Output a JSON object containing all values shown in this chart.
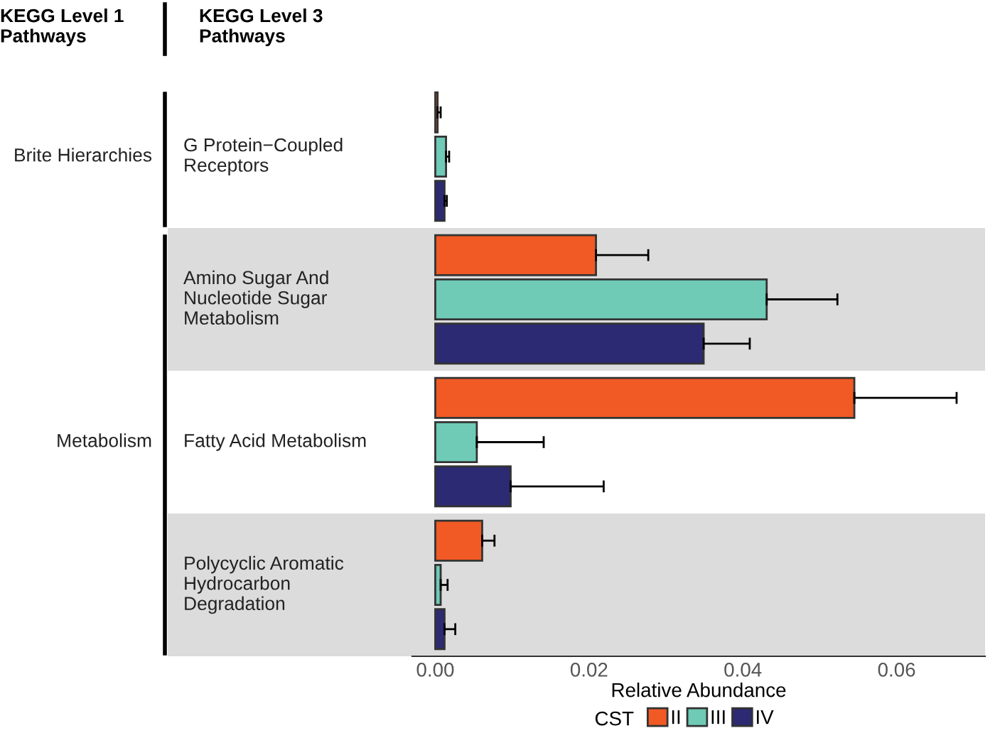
{
  "chart_data": {
    "type": "bar",
    "orientation": "horizontal",
    "categories": [
      "G Protein−Coupled\nReceptors",
      "Amino Sugar And\nNucleotide Sugar\nMetabolism",
      "Fatty Acid Metabolism",
      "Polycyclic Aromatic\nHydrocarbon\nDegradation"
    ],
    "series": [
      {
        "name": "II",
        "color": "#f15a24",
        "values": [
          0.0003,
          0.0209,
          0.0545,
          0.0061
        ],
        "errors": [
          0.0004,
          0.0068,
          0.0133,
          0.0016
        ]
      },
      {
        "name": "III",
        "color": "#6fcab6",
        "values": [
          0.0014,
          0.0431,
          0.0054,
          0.0007
        ],
        "errors": [
          0.0004,
          0.0092,
          0.0087,
          0.0009
        ]
      },
      {
        "name": "IV",
        "color": "#2b2a72",
        "values": [
          0.0012,
          0.0349,
          0.0098,
          0.0012
        ],
        "errors": [
          0.0003,
          0.006,
          0.0121,
          0.0014
        ]
      }
    ],
    "xlabel": "Relative Abundance",
    "legend_title": "CST",
    "legend": "bottom",
    "grid": false,
    "tick_labels": "x",
    "xlim": [
      -0.003,
      0.0715
    ],
    "xticks": [
      {
        "value": 0,
        "label": "0.00"
      },
      {
        "value": 0.02,
        "label": "0.02"
      },
      {
        "value": 0.04,
        "label": "0.04"
      },
      {
        "value": 0.06,
        "label": "0.06"
      }
    ],
    "annotations": [
      "KEGG Level 1\nPathways",
      "KEGG Level 3\nPathways",
      "Brite Hierarchies",
      "Metabolism"
    ]
  }
}
